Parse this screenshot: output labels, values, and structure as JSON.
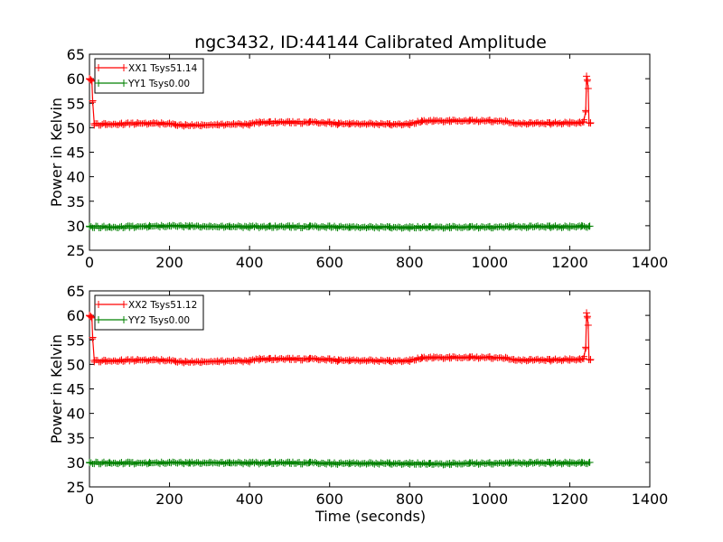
{
  "figure": {
    "title": "ngc3432, ID:44144 Calibrated Amplitude",
    "xlabel": "Time (seconds)"
  },
  "chart_data": [
    {
      "type": "line",
      "title": "ngc3432, ID:44144 Calibrated Amplitude",
      "xlabel": "",
      "ylabel": "Power in Kelvin",
      "xlim": [
        0,
        1400
      ],
      "ylim": [
        25,
        65
      ],
      "xticks": [
        "0",
        "200",
        "400",
        "600",
        "800",
        "1000",
        "1200",
        "1400"
      ],
      "yticks": [
        "25",
        "30",
        "35",
        "40",
        "45",
        "50",
        "55",
        "60",
        "65"
      ],
      "grid": false,
      "legend_position": "top-left",
      "series": [
        {
          "name": "XX1 Tsys51.14",
          "color": "#ff0000",
          "marker": "plus",
          "x": [
            0,
            3,
            6,
            8,
            12,
            40,
            80,
            120,
            160,
            200,
            215,
            240,
            280,
            320,
            360,
            400,
            425,
            450,
            500,
            550,
            600,
            622,
            650,
            700,
            750,
            800,
            830,
            860,
            900,
            950,
            1000,
            1040,
            1060,
            1100,
            1150,
            1200,
            1225,
            1235,
            1240,
            1242,
            1244,
            1246,
            1248,
            1252
          ],
          "y": [
            60.0,
            59.8,
            59.5,
            55.5,
            50.8,
            50.8,
            50.9,
            51.0,
            51.0,
            50.9,
            50.6,
            50.6,
            50.6,
            50.7,
            50.8,
            50.8,
            51.2,
            51.2,
            51.2,
            51.2,
            51.1,
            50.9,
            50.9,
            50.9,
            50.8,
            50.9,
            51.4,
            51.5,
            51.5,
            51.5,
            51.5,
            51.4,
            51.0,
            51.0,
            51.0,
            51.1,
            51.1,
            51.2,
            53.5,
            60.5,
            59.8,
            58.0,
            51.0,
            51.0
          ]
        },
        {
          "name": "YY1 Tsys0.00",
          "color": "#008000",
          "marker": "plus",
          "x": [
            0,
            50,
            100,
            150,
            200,
            250,
            300,
            350,
            400,
            450,
            500,
            550,
            600,
            650,
            700,
            750,
            800,
            850,
            900,
            950,
            1000,
            1050,
            1100,
            1150,
            1200,
            1230,
            1250
          ],
          "y": [
            29.9,
            29.8,
            29.9,
            30.0,
            30.0,
            30.0,
            29.9,
            29.9,
            29.9,
            29.9,
            29.9,
            29.9,
            29.9,
            29.8,
            29.8,
            29.8,
            29.8,
            29.8,
            29.8,
            29.8,
            29.8,
            29.9,
            29.9,
            29.9,
            29.9,
            30.0,
            29.9
          ]
        }
      ]
    },
    {
      "type": "line",
      "title": "",
      "xlabel": "Time (seconds)",
      "ylabel": "Power in Kelvin",
      "xlim": [
        0,
        1400
      ],
      "ylim": [
        25,
        65
      ],
      "xticks": [
        "0",
        "200",
        "400",
        "600",
        "800",
        "1000",
        "1200",
        "1400"
      ],
      "yticks": [
        "25",
        "30",
        "35",
        "40",
        "45",
        "50",
        "55",
        "60",
        "65"
      ],
      "grid": false,
      "legend_position": "top-left",
      "series": [
        {
          "name": "XX2 Tsys51.12",
          "color": "#ff0000",
          "marker": "plus",
          "x": [
            0,
            3,
            6,
            8,
            12,
            40,
            80,
            120,
            160,
            200,
            215,
            240,
            280,
            320,
            360,
            400,
            425,
            450,
            500,
            550,
            600,
            622,
            650,
            700,
            750,
            800,
            830,
            860,
            900,
            950,
            1000,
            1040,
            1060,
            1100,
            1150,
            1200,
            1225,
            1235,
            1240,
            1242,
            1244,
            1246,
            1248,
            1252
          ],
          "y": [
            60.0,
            59.8,
            59.5,
            55.5,
            50.8,
            50.8,
            50.9,
            51.0,
            51.0,
            50.9,
            50.6,
            50.6,
            50.6,
            50.7,
            50.8,
            50.8,
            51.2,
            51.2,
            51.2,
            51.2,
            51.1,
            50.9,
            50.9,
            50.9,
            50.8,
            50.9,
            51.4,
            51.5,
            51.5,
            51.5,
            51.5,
            51.4,
            51.0,
            51.0,
            51.0,
            51.1,
            51.1,
            51.2,
            53.5,
            60.5,
            59.8,
            58.0,
            51.0,
            51.0
          ]
        },
        {
          "name": "YY2 Tsys0.00",
          "color": "#008000",
          "marker": "plus",
          "x": [
            0,
            50,
            100,
            150,
            200,
            250,
            300,
            350,
            400,
            450,
            500,
            550,
            600,
            650,
            700,
            750,
            800,
            850,
            900,
            950,
            1000,
            1050,
            1100,
            1150,
            1200,
            1230,
            1250
          ],
          "y": [
            30.0,
            30.0,
            30.0,
            30.0,
            30.0,
            30.0,
            30.0,
            30.0,
            30.0,
            30.0,
            30.0,
            30.0,
            29.9,
            29.9,
            29.9,
            29.9,
            29.9,
            29.8,
            29.8,
            29.9,
            29.9,
            30.0,
            30.0,
            30.0,
            30.0,
            30.0,
            30.0
          ]
        }
      ]
    }
  ]
}
